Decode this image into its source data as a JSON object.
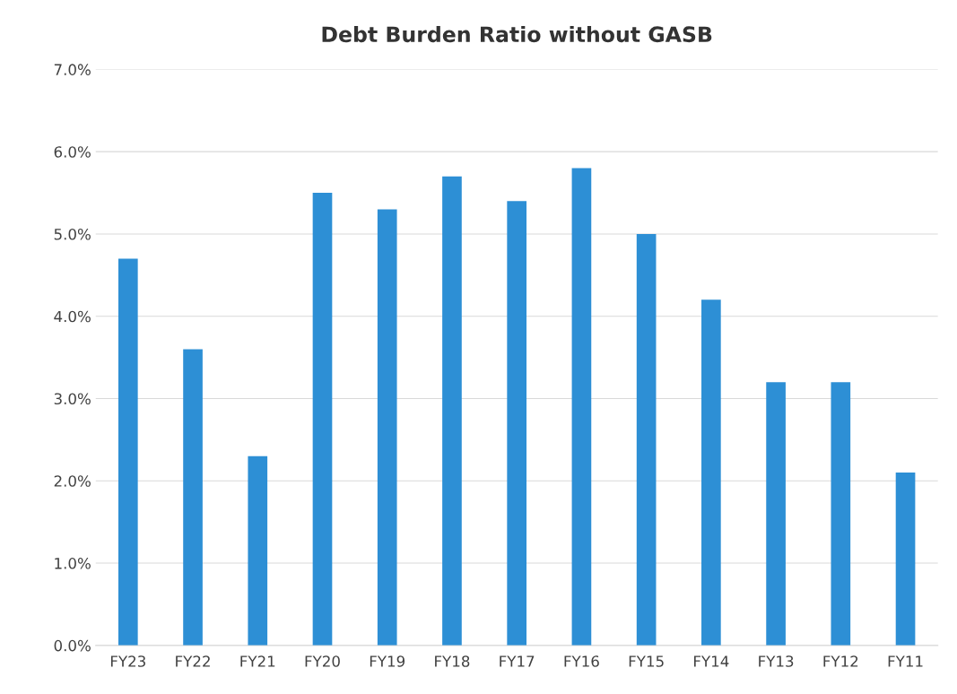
{
  "chart_data": {
    "type": "bar",
    "title": "Debt Burden Ratio without GASB",
    "categories": [
      "FY23",
      "FY22",
      "FY21",
      "FY20",
      "FY19",
      "FY18",
      "FY17",
      "FY16",
      "FY15",
      "FY14",
      "FY13",
      "FY12",
      "FY11"
    ],
    "values": [
      4.7,
      3.6,
      2.3,
      5.5,
      5.3,
      5.7,
      5.4,
      5.8,
      5.0,
      4.2,
      3.2,
      3.2,
      2.1
    ],
    "color": "#2d8fd5",
    "ylim": [
      0,
      7
    ],
    "yticks": [
      {
        "value": 0,
        "label": "0.0%"
      },
      {
        "value": 1,
        "label": "1.0%"
      },
      {
        "value": 2,
        "label": "2.0%"
      },
      {
        "value": 3,
        "label": "3.0%"
      },
      {
        "value": 4,
        "label": "4.0%"
      },
      {
        "value": 5,
        "label": "5.0%"
      },
      {
        "value": 6,
        "label": "6.0%"
      },
      {
        "value": 7,
        "label": "7.0%"
      }
    ],
    "grid": "y"
  }
}
